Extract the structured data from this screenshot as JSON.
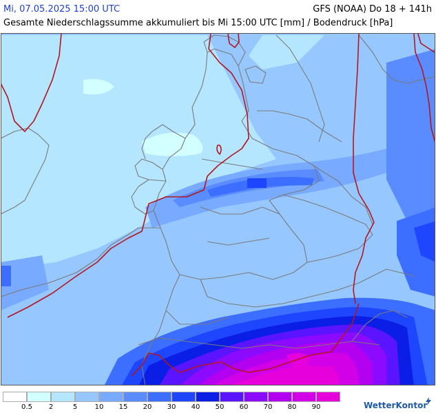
{
  "header": {
    "valid_time": "Mi, 07.05.2025 15:00 UTC",
    "run_info": "GFS (NOAA) Do 18 + 141h",
    "subtitle": "Gesamte Niederschlagssumme akkumuliert bis Mi 15:00 UTC [mm] / Bodendruck [hPa]"
  },
  "legend": {
    "bins": [
      {
        "color": "#ffffff",
        "label": ""
      },
      {
        "color": "#d2ffff",
        "label": "0.5"
      },
      {
        "color": "#b4e6ff",
        "label": "2"
      },
      {
        "color": "#96c8ff",
        "label": "5"
      },
      {
        "color": "#78aaff",
        "label": "10"
      },
      {
        "color": "#5a8cff",
        "label": "15"
      },
      {
        "color": "#3c6eff",
        "label": "20"
      },
      {
        "color": "#1e46ff",
        "label": "30"
      },
      {
        "color": "#0a1ee6",
        "label": "40"
      },
      {
        "color": "#5a14ff",
        "label": "50"
      },
      {
        "color": "#8c0aff",
        "label": "60"
      },
      {
        "color": "#b400f0",
        "label": "70"
      },
      {
        "color": "#d200e6",
        "label": "80"
      },
      {
        "color": "#e600dc",
        "label": "90"
      }
    ]
  },
  "logo": {
    "text": "WetterKontor",
    "icon": "lightning-icon"
  },
  "colors": {
    "isobar": "#b4141e",
    "border": "#7a7a7a",
    "title_blue": "#1c3fd0"
  }
}
